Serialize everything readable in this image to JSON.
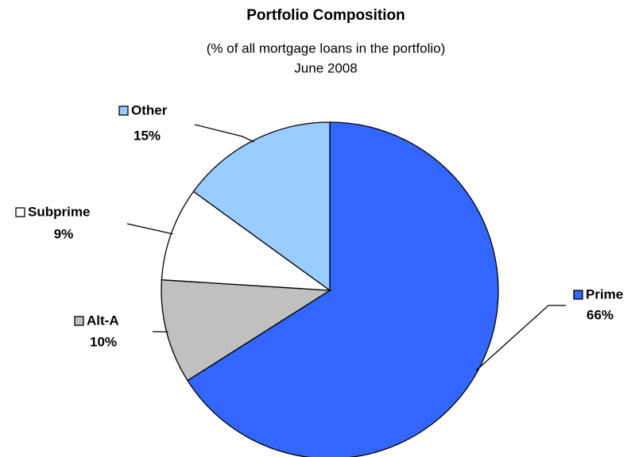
{
  "chart_data": {
    "type": "pie",
    "title": "Portfolio Composition",
    "subtitle": "(% of all mortgage loans in the portfolio)",
    "date": "June 2008",
    "categories": [
      "Prime",
      "Alt-A",
      "Subprime",
      "Other"
    ],
    "values": [
      66,
      10,
      9,
      15
    ],
    "value_labels": [
      "66%",
      "10%",
      "9%",
      "15%"
    ],
    "colors": [
      "#3366ff",
      "#c0c0c0",
      "#ffffff",
      "#99ccff"
    ]
  }
}
